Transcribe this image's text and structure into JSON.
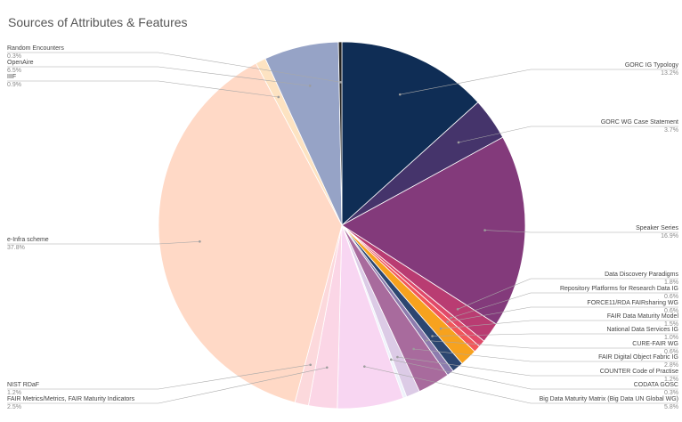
{
  "chart_data": {
    "type": "pie",
    "title": "Sources of Attributes & Features",
    "slices": [
      {
        "label": "GORC IG Typology",
        "value": 13.2,
        "display": "13.2%",
        "color": "#0f2d55"
      },
      {
        "label": "GORC WG Case Statement",
        "value": 3.7,
        "display": "3.7%",
        "color": "#45346b"
      },
      {
        "label": "Speaker Series",
        "value": 16.9,
        "display": "16.9%",
        "color": "#833a7b"
      },
      {
        "label": "Data Discovery Paradigms",
        "value": 1.8,
        "display": "1.8%",
        "color": "#b93c72"
      },
      {
        "label": "Repository Platforms for Research Data IG",
        "value": 0.6,
        "display": "0.6%",
        "color": "#e04a6a"
      },
      {
        "label": "FORCE11/RDA FAIRsharing WG",
        "value": 0.6,
        "display": "0.6%",
        "color": "#f2585a"
      },
      {
        "label": "FAIR Data Maturity Model",
        "value": 1.5,
        "display": "1.5%",
        "color": "#f7a21e"
      },
      {
        "label": "National Data Services IG",
        "value": 1.0,
        "display": "1.0%",
        "color": "#2c4670"
      },
      {
        "label": "CURE-FAIR WG",
        "value": 0.6,
        "display": "0.6%",
        "color": "#8d7cae"
      },
      {
        "label": "FAIR Digital Object Fabric IG",
        "value": 2.8,
        "display": "2.8%",
        "color": "#a86b9d"
      },
      {
        "label": "COUNTER Code of Practise",
        "value": 1.2,
        "display": "1.2%",
        "color": "#dccbe6"
      },
      {
        "label": "CODATA GOSC",
        "value": 0.3,
        "display": "0.3%",
        "color": "#eef2fb"
      },
      {
        "label": "Big Data Maturity Matrix (Big Data UN Global WG)",
        "value": 5.8,
        "display": "5.8%",
        "color": "#f8d6f2"
      },
      {
        "label": "FAIR Metrics/Metrics, FAIR Maturity Indicators",
        "value": 2.5,
        "display": "2.5%",
        "color": "#fbd6e6"
      },
      {
        "label": "NIST RDaF",
        "value": 1.2,
        "display": "1.2%",
        "color": "#fcd9dc"
      },
      {
        "label": "e-Infra scheme",
        "value": 37.8,
        "display": "37.8%",
        "color": "#ffd9c6"
      },
      {
        "label": "IIIF",
        "value": 0.9,
        "display": "0.9%",
        "color": "#fde3c2"
      },
      {
        "label": "OpenAire",
        "value": 6.5,
        "display": "6.5%",
        "color": "#96a3c6"
      },
      {
        "label": "Random Encounters",
        "value": 0.3,
        "display": "0.3%",
        "color": "#222222"
      }
    ]
  }
}
